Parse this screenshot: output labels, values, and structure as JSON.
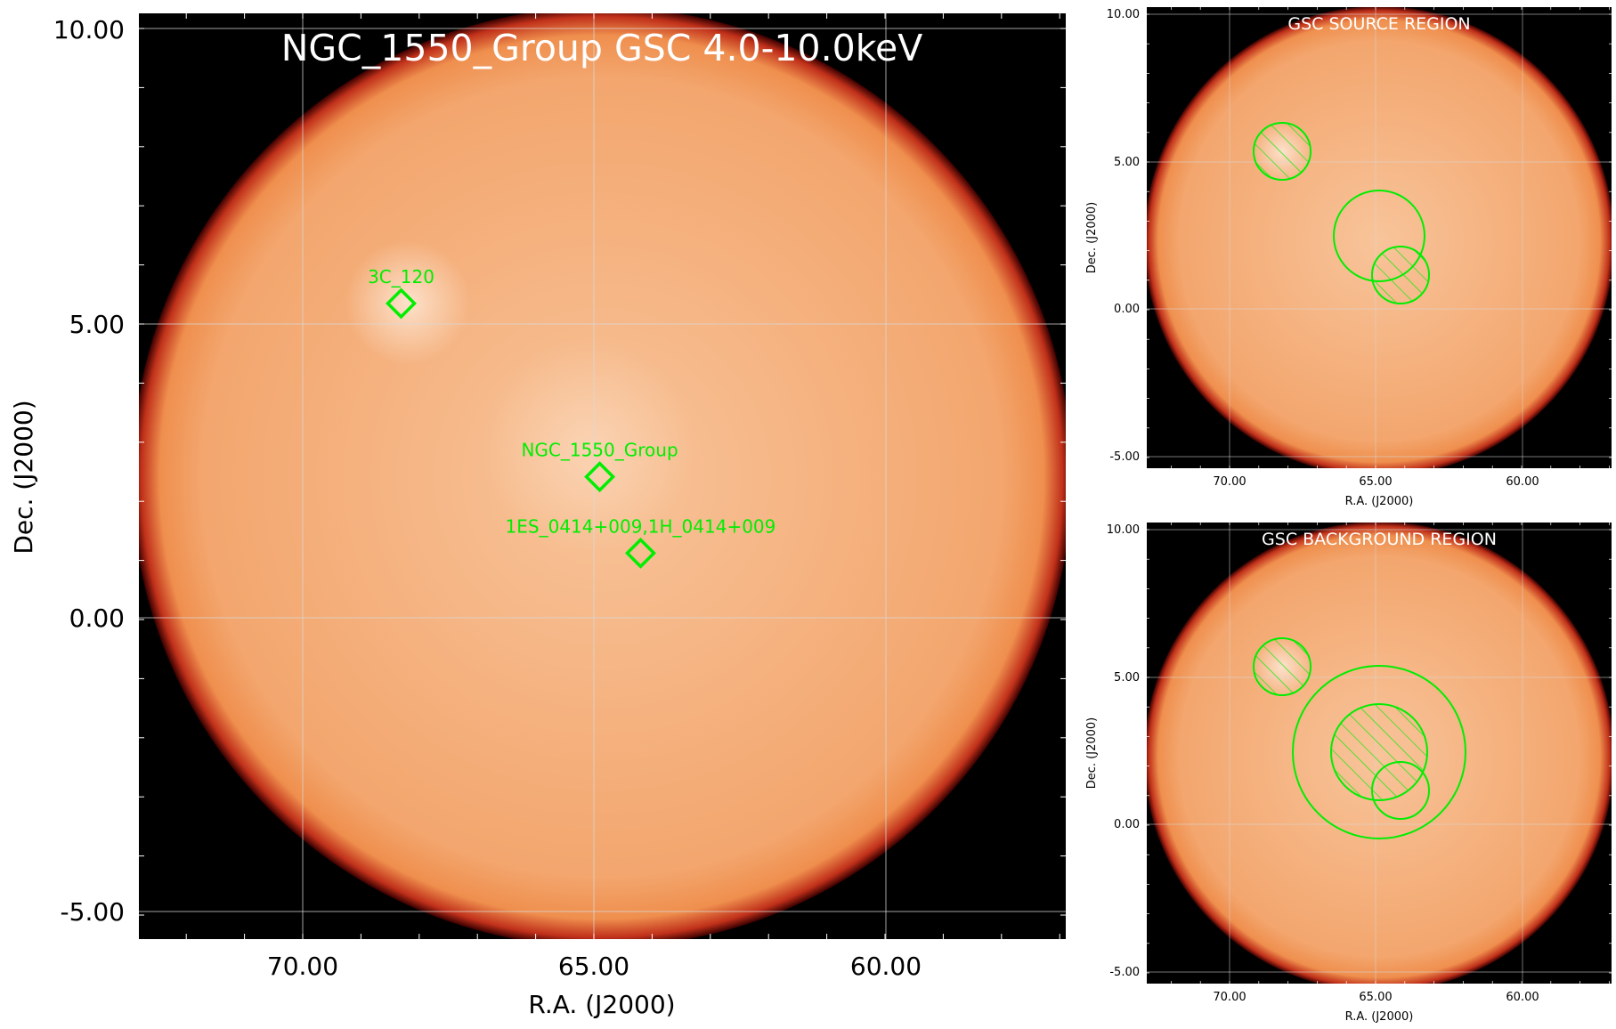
{
  "main_panel": {
    "title": "NGC_1550_Group GSC 4.0-10.0keV",
    "xlabel": "R.A. (J2000)",
    "ylabel": "Dec. (J2000)",
    "xticks": [
      "70.00",
      "65.00",
      "60.00"
    ],
    "yticks": [
      "10.00",
      "5.00",
      "0.00",
      "-5.00"
    ],
    "sources": [
      {
        "label": "3C_120",
        "ra": 68.3,
        "dec": 5.35
      },
      {
        "label": "NGC_1550_Group",
        "ra": 64.9,
        "dec": 2.4
      },
      {
        "label": "1ES_0414+009,1H_0414+009",
        "ra": 64.2,
        "dec": 1.1
      }
    ]
  },
  "source_panel": {
    "title": "GSC SOURCE REGION",
    "xlabel": "R.A. (J2000)",
    "ylabel": "Dec. (J2000)",
    "xticks": [
      "70.00",
      "65.00",
      "60.00"
    ],
    "yticks": [
      "10.00",
      "5.00",
      "0.00",
      "-5.00"
    ]
  },
  "background_panel": {
    "title": "GSC BACKGROUND REGION",
    "xlabel": "R.A. (J2000)",
    "ylabel": "Dec. (J2000)",
    "xticks": [
      "70.00",
      "65.00",
      "60.00"
    ],
    "yticks": [
      "10.00",
      "5.00",
      "0.00",
      "-5.00"
    ]
  },
  "colors": {
    "sky_background": "#000000",
    "field_of_view": "#f3a66e",
    "field_edge": "#c0301a",
    "region_marker": "#00ee00",
    "title_text": "#ffffff",
    "grid": "#d8d8d8"
  }
}
